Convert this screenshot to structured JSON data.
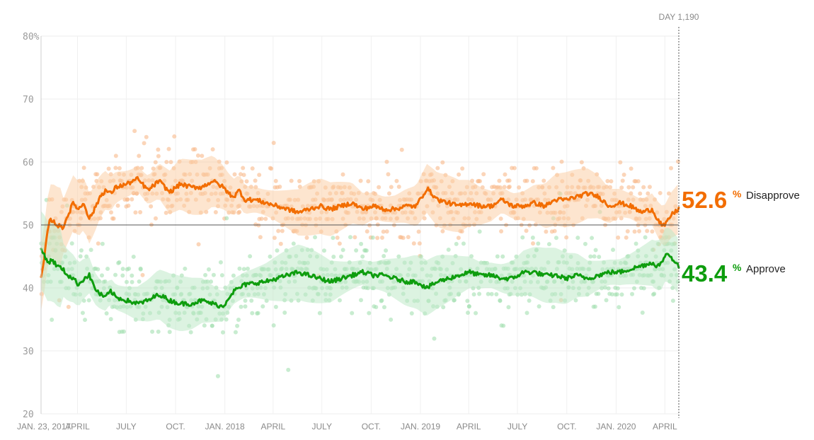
{
  "chart_data": {
    "type": "line",
    "title": "",
    "xlabel": "",
    "ylabel": "",
    "ylim": [
      20,
      80
    ],
    "y_ticks": [
      {
        "value": 80,
        "label": "80%"
      },
      {
        "value": 70,
        "label": "70"
      },
      {
        "value": 60,
        "label": "60"
      },
      {
        "value": 50,
        "label": "50"
      },
      {
        "value": 40,
        "label": "40"
      },
      {
        "value": 30,
        "label": "30"
      },
      {
        "value": 20,
        "label": "20"
      }
    ],
    "x_ticks": [
      {
        "day": 0,
        "label": "JAN. 23, 2017"
      },
      {
        "day": 68,
        "label": "APRIL"
      },
      {
        "day": 159,
        "label": "JULY"
      },
      {
        "day": 251,
        "label": "OCT."
      },
      {
        "day": 343,
        "label": "JAN. 2018"
      },
      {
        "day": 433,
        "label": "APRIL"
      },
      {
        "day": 524,
        "label": "JULY"
      },
      {
        "day": 616,
        "label": "OCT."
      },
      {
        "day": 708,
        "label": "JAN. 2019"
      },
      {
        "day": 798,
        "label": "APRIL"
      },
      {
        "day": 889,
        "label": "JULY"
      },
      {
        "day": 981,
        "label": "OCT."
      },
      {
        "day": 1073,
        "label": "JAN. 2020"
      },
      {
        "day": 1164,
        "label": "APRIL"
      }
    ],
    "xlim": [
      0,
      1190
    ],
    "reference_line": 50,
    "current_day_label": "DAY 1,190",
    "current_day": 1190,
    "grid": true,
    "series": [
      {
        "name": "Disapprove",
        "color": "#f26d00",
        "band_color": "#fcd0a8",
        "dot_color": "#f9b98a",
        "current_value": "52.6",
        "x": [
          0,
          5,
          10,
          15,
          20,
          30,
          40,
          50,
          60,
          70,
          80,
          90,
          100,
          110,
          120,
          130,
          140,
          160,
          180,
          200,
          220,
          240,
          260,
          280,
          300,
          320,
          340,
          350,
          360,
          370,
          380,
          400,
          420,
          440,
          460,
          480,
          500,
          520,
          540,
          560,
          580,
          600,
          620,
          640,
          660,
          680,
          700,
          720,
          740,
          760,
          780,
          800,
          820,
          840,
          860,
          880,
          900,
          920,
          940,
          960,
          980,
          1000,
          1020,
          1040,
          1060,
          1080,
          1100,
          1120,
          1140,
          1150,
          1160,
          1165,
          1175,
          1190
        ],
        "values": [
          41.5,
          44.0,
          47.5,
          50.5,
          50.8,
          50.0,
          49.5,
          51.5,
          53.5,
          52.5,
          53.5,
          51.0,
          52.5,
          54.5,
          55.5,
          55.0,
          56.0,
          56.5,
          57.3,
          55.5,
          57.0,
          55.2,
          56.5,
          56.0,
          56.0,
          57.0,
          56.0,
          55.0,
          54.5,
          55.5,
          54.0,
          54.0,
          53.5,
          53.0,
          52.5,
          52.0,
          52.5,
          53.0,
          52.5,
          53.0,
          53.5,
          52.5,
          53.0,
          52.5,
          52.5,
          53.0,
          53.0,
          55.8,
          54.0,
          53.5,
          53.0,
          53.5,
          53.0,
          53.0,
          54.0,
          53.0,
          53.0,
          53.5,
          53.0,
          54.0,
          54.0,
          54.5,
          55.0,
          54.5,
          53.0,
          53.5,
          53.0,
          52.0,
          52.5,
          51.0,
          49.8,
          50.0,
          51.5,
          52.6
        ]
      },
      {
        "name": "Approve",
        "color": "#0e9d0e",
        "band_color": "#bfe9c8",
        "dot_color": "#a3dfb0",
        "current_value": "43.4",
        "x": [
          0,
          5,
          10,
          15,
          20,
          30,
          40,
          50,
          60,
          70,
          80,
          90,
          100,
          110,
          120,
          130,
          140,
          160,
          180,
          200,
          220,
          240,
          260,
          280,
          300,
          320,
          340,
          350,
          360,
          370,
          380,
          400,
          420,
          440,
          460,
          480,
          500,
          520,
          540,
          560,
          580,
          600,
          620,
          640,
          660,
          680,
          700,
          720,
          740,
          760,
          780,
          800,
          820,
          840,
          860,
          880,
          900,
          920,
          940,
          960,
          980,
          1000,
          1020,
          1040,
          1060,
          1080,
          1100,
          1120,
          1140,
          1150,
          1160,
          1165,
          1175,
          1190
        ],
        "values": [
          46.0,
          45.5,
          44.5,
          44.0,
          44.5,
          43.5,
          43.0,
          42.0,
          41.5,
          40.5,
          41.5,
          42.0,
          40.0,
          39.0,
          38.5,
          39.5,
          38.5,
          38.0,
          37.5,
          38.0,
          39.0,
          38.0,
          37.5,
          37.5,
          38.0,
          37.5,
          37.0,
          38.5,
          39.5,
          40.0,
          40.5,
          40.8,
          41.0,
          41.5,
          42.0,
          42.5,
          42.0,
          41.5,
          41.0,
          41.5,
          42.0,
          42.5,
          42.0,
          42.0,
          41.5,
          41.0,
          41.0,
          40.0,
          41.0,
          41.5,
          42.0,
          42.5,
          42.0,
          42.0,
          41.5,
          41.5,
          42.5,
          42.5,
          42.0,
          42.0,
          41.5,
          42.0,
          41.5,
          42.0,
          42.5,
          42.5,
          43.0,
          43.5,
          44.0,
          43.5,
          44.0,
          45.5,
          45.0,
          43.4
        ]
      }
    ]
  },
  "labels": {
    "percent_sign": "%"
  }
}
